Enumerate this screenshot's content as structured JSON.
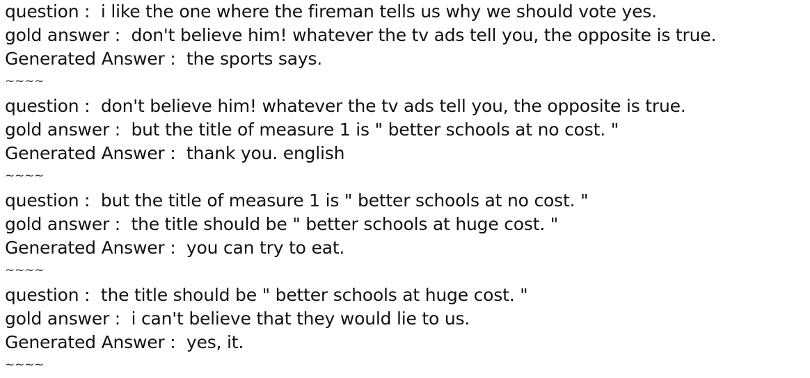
{
  "entries": [
    {
      "question_label": "question : ",
      "question": " i like the one where the fireman tells us why we should vote yes.",
      "gold_label": "gold answer : ",
      "gold": " don't believe him! whatever the tv ads tell you, the opposite is true.",
      "generated_label": "Generated Answer : ",
      "generated": " the sports says.",
      "separator": "~~~~"
    },
    {
      "question_label": "question : ",
      "question": " don't believe him! whatever the tv ads tell you, the opposite is true.",
      "gold_label": "gold answer : ",
      "gold": " but the title of measure 1 is \" better schools at no cost. \"",
      "generated_label": "Generated Answer : ",
      "generated": " thank you. english",
      "separator": "~~~~"
    },
    {
      "question_label": "question : ",
      "question": " but the title of measure 1 is \" better schools at no cost. \"",
      "gold_label": "gold answer : ",
      "gold": " the title should be \" better schools at huge cost. \"",
      "generated_label": "Generated Answer : ",
      "generated": " you can try to eat.",
      "separator": "~~~~"
    },
    {
      "question_label": "question : ",
      "question": " the title should be \" better schools at huge cost. \"",
      "gold_label": "gold answer : ",
      "gold": " i can't believe that they would lie to us.",
      "generated_label": "Generated Answer : ",
      "generated": " yes, it.",
      "separator": "~~~~"
    }
  ]
}
